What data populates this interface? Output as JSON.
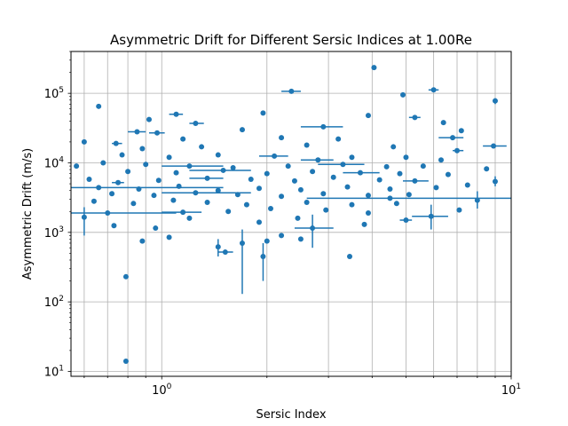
{
  "chart_data": {
    "type": "scatter",
    "title": "Asymmetric Drift for Different Sersic Indices at 1.00Re",
    "xlabel": "Sersic Index",
    "ylabel": "Asymmetric Drift (m/s)",
    "xscale": "log",
    "yscale": "log",
    "xlim": [
      0.55,
      10
    ],
    "ylim": [
      8.5,
      400000
    ],
    "grid": "both (major and minor on x, major on y)",
    "marker_color": "#1f77b4",
    "x_tick_labels": [
      {
        "base": "10",
        "exp": "0",
        "value": 1
      },
      {
        "base": "10",
        "exp": "1",
        "value": 10
      }
    ],
    "y_tick_labels": [
      {
        "base": "10",
        "exp": "1",
        "value": 10
      },
      {
        "base": "10",
        "exp": "2",
        "value": 100
      },
      {
        "base": "10",
        "exp": "3",
        "value": 1000
      },
      {
        "base": "10",
        "exp": "4",
        "value": 10000
      },
      {
        "base": "10",
        "exp": "5",
        "value": 100000
      }
    ],
    "points": [
      {
        "x": 0.79,
        "y": 14
      },
      {
        "x": 0.79,
        "y": 230
      },
      {
        "x": 4.05,
        "y": 235000
      },
      {
        "x": 6.0,
        "y": 112000,
        "xerr": [
          5.8,
          6.2
        ]
      },
      {
        "x": 2.35,
        "y": 107000,
        "xerr": [
          2.2,
          2.5
        ]
      },
      {
        "x": 4.9,
        "y": 95000
      },
      {
        "x": 9.0,
        "y": 78000,
        "yerr": [
          70000,
          85000
        ]
      },
      {
        "x": 0.66,
        "y": 65000
      },
      {
        "x": 1.95,
        "y": 52000
      },
      {
        "x": 1.1,
        "y": 50000,
        "xerr": [
          1.05,
          1.15
        ]
      },
      {
        "x": 5.3,
        "y": 45000,
        "xerr": [
          5.1,
          5.5
        ]
      },
      {
        "x": 3.9,
        "y": 48000
      },
      {
        "x": 0.92,
        "y": 42000
      },
      {
        "x": 1.25,
        "y": 37000,
        "xerr": [
          1.2,
          1.32
        ]
      },
      {
        "x": 2.9,
        "y": 33000,
        "xerr": [
          2.5,
          3.3
        ]
      },
      {
        "x": 0.85,
        "y": 28000,
        "xerr": [
          0.8,
          0.9
        ]
      },
      {
        "x": 0.97,
        "y": 27000,
        "xerr": [
          0.92,
          1.02
        ]
      },
      {
        "x": 1.7,
        "y": 30000
      },
      {
        "x": 6.4,
        "y": 38000
      },
      {
        "x": 7.2,
        "y": 29000
      },
      {
        "x": 0.6,
        "y": 20000
      },
      {
        "x": 0.74,
        "y": 19000,
        "xerr": [
          0.72,
          0.77
        ]
      },
      {
        "x": 1.15,
        "y": 22000
      },
      {
        "x": 2.2,
        "y": 23000
      },
      {
        "x": 3.2,
        "y": 22000
      },
      {
        "x": 6.8,
        "y": 23000,
        "xerr": [
          6.2,
          7.3
        ]
      },
      {
        "x": 0.88,
        "y": 16000
      },
      {
        "x": 1.3,
        "y": 17000
      },
      {
        "x": 2.6,
        "y": 18000
      },
      {
        "x": 4.6,
        "y": 17000
      },
      {
        "x": 8.9,
        "y": 17500,
        "xerr": [
          8.3,
          9.7
        ]
      },
      {
        "x": 0.77,
        "y": 13000
      },
      {
        "x": 1.05,
        "y": 12000
      },
      {
        "x": 1.45,
        "y": 13000
      },
      {
        "x": 2.1,
        "y": 12500,
        "xerr": [
          1.9,
          2.3
        ]
      },
      {
        "x": 2.8,
        "y": 11000,
        "xerr": [
          2.5,
          3.1
        ]
      },
      {
        "x": 3.5,
        "y": 12000
      },
      {
        "x": 5.0,
        "y": 12000
      },
      {
        "x": 6.3,
        "y": 11000
      },
      {
        "x": 7.0,
        "y": 15000,
        "xerr": [
          6.8,
          7.3
        ]
      },
      {
        "x": 0.57,
        "y": 9000
      },
      {
        "x": 0.68,
        "y": 10000
      },
      {
        "x": 0.9,
        "y": 9500
      },
      {
        "x": 1.2,
        "y": 9000,
        "xerr": [
          1.0,
          1.5
        ]
      },
      {
        "x": 1.6,
        "y": 8500
      },
      {
        "x": 2.3,
        "y": 9000
      },
      {
        "x": 3.3,
        "y": 9500,
        "xerr": [
          2.8,
          3.8
        ]
      },
      {
        "x": 4.4,
        "y": 8800
      },
      {
        "x": 5.6,
        "y": 9000
      },
      {
        "x": 8.5,
        "y": 8200
      },
      {
        "x": 0.8,
        "y": 7500
      },
      {
        "x": 1.1,
        "y": 7200
      },
      {
        "x": 1.5,
        "y": 7800,
        "xerr": [
          1.2,
          1.8
        ]
      },
      {
        "x": 2.0,
        "y": 7000
      },
      {
        "x": 2.7,
        "y": 7500
      },
      {
        "x": 3.7,
        "y": 7200,
        "xerr": [
          3.3,
          4.2
        ]
      },
      {
        "x": 4.8,
        "y": 7000
      },
      {
        "x": 6.6,
        "y": 6800
      },
      {
        "x": 0.62,
        "y": 5800
      },
      {
        "x": 0.75,
        "y": 5200,
        "xerr": [
          0.72,
          0.78
        ]
      },
      {
        "x": 0.98,
        "y": 5600
      },
      {
        "x": 1.35,
        "y": 6000,
        "xerr": [
          1.2,
          1.5
        ]
      },
      {
        "x": 1.8,
        "y": 5800
      },
      {
        "x": 2.4,
        "y": 5500
      },
      {
        "x": 3.1,
        "y": 6200
      },
      {
        "x": 4.2,
        "y": 5700
      },
      {
        "x": 5.3,
        "y": 5500,
        "xerr": [
          4.9,
          5.8
        ]
      },
      {
        "x": 7.5,
        "y": 4800
      },
      {
        "x": 9.0,
        "y": 5400,
        "yerr": [
          4600,
          6400
        ]
      },
      {
        "x": 0.66,
        "y": 4400,
        "xerr": [
          0.55,
          1.5
        ]
      },
      {
        "x": 0.86,
        "y": 4200
      },
      {
        "x": 1.12,
        "y": 4600
      },
      {
        "x": 1.45,
        "y": 4000
      },
      {
        "x": 1.9,
        "y": 4300
      },
      {
        "x": 2.5,
        "y": 4100
      },
      {
        "x": 3.4,
        "y": 4500
      },
      {
        "x": 4.5,
        "y": 4200
      },
      {
        "x": 6.1,
        "y": 4400
      },
      {
        "x": 0.72,
        "y": 3600
      },
      {
        "x": 0.95,
        "y": 3400
      },
      {
        "x": 1.25,
        "y": 3700,
        "xerr": [
          1.0,
          1.8
        ]
      },
      {
        "x": 1.65,
        "y": 3500
      },
      {
        "x": 2.2,
        "y": 3300
      },
      {
        "x": 2.9,
        "y": 3600
      },
      {
        "x": 3.9,
        "y": 3400
      },
      {
        "x": 5.1,
        "y": 3500
      },
      {
        "x": 4.5,
        "y": 3100,
        "xerr": [
          2.6,
          10
        ]
      },
      {
        "x": 8.0,
        "y": 2900,
        "yerr": [
          2200,
          3900
        ]
      },
      {
        "x": 0.64,
        "y": 2800
      },
      {
        "x": 0.83,
        "y": 2600
      },
      {
        "x": 1.08,
        "y": 2900
      },
      {
        "x": 1.35,
        "y": 2700
      },
      {
        "x": 1.75,
        "y": 2500
      },
      {
        "x": 2.6,
        "y": 2700
      },
      {
        "x": 3.5,
        "y": 2500
      },
      {
        "x": 4.7,
        "y": 2600
      },
      {
        "x": 7.1,
        "y": 2100
      },
      {
        "x": 0.7,
        "y": 1900,
        "xerr": [
          0.55,
          1.1
        ]
      },
      {
        "x": 1.15,
        "y": 1950,
        "xerr": [
          1.0,
          1.3
        ]
      },
      {
        "x": 1.55,
        "y": 2000
      },
      {
        "x": 2.05,
        "y": 2200
      },
      {
        "x": 2.95,
        "y": 2100
      },
      {
        "x": 3.9,
        "y": 1900
      },
      {
        "x": 5.0,
        "y": 1500,
        "xerr": [
          4.8,
          5.2
        ]
      },
      {
        "x": 5.9,
        "y": 1700,
        "xerr": [
          5.2,
          6.6
        ],
        "yerr": [
          1100,
          2500
        ]
      },
      {
        "x": 0.6,
        "y": 1650,
        "yerr": [
          900,
          2300
        ]
      },
      {
        "x": 0.73,
        "y": 1250
      },
      {
        "x": 0.96,
        "y": 1150
      },
      {
        "x": 1.2,
        "y": 1600
      },
      {
        "x": 1.9,
        "y": 1400
      },
      {
        "x": 2.45,
        "y": 1600
      },
      {
        "x": 2.7,
        "y": 1150,
        "xerr": [
          2.4,
          3.1
        ],
        "yerr": [
          600,
          1800
        ]
      },
      {
        "x": 3.8,
        "y": 1300
      },
      {
        "x": 0.88,
        "y": 750
      },
      {
        "x": 1.05,
        "y": 850
      },
      {
        "x": 1.45,
        "y": 620,
        "yerr": [
          450,
          800
        ]
      },
      {
        "x": 1.52,
        "y": 520,
        "xerr": [
          1.45,
          1.6
        ]
      },
      {
        "x": 1.7,
        "y": 700,
        "yerr": [
          130,
          1100
        ]
      },
      {
        "x": 1.95,
        "y": 450,
        "yerr": [
          200,
          700
        ]
      },
      {
        "x": 2.0,
        "y": 750
      },
      {
        "x": 2.2,
        "y": 900
      },
      {
        "x": 2.5,
        "y": 800
      },
      {
        "x": 3.45,
        "y": 450
      }
    ]
  }
}
